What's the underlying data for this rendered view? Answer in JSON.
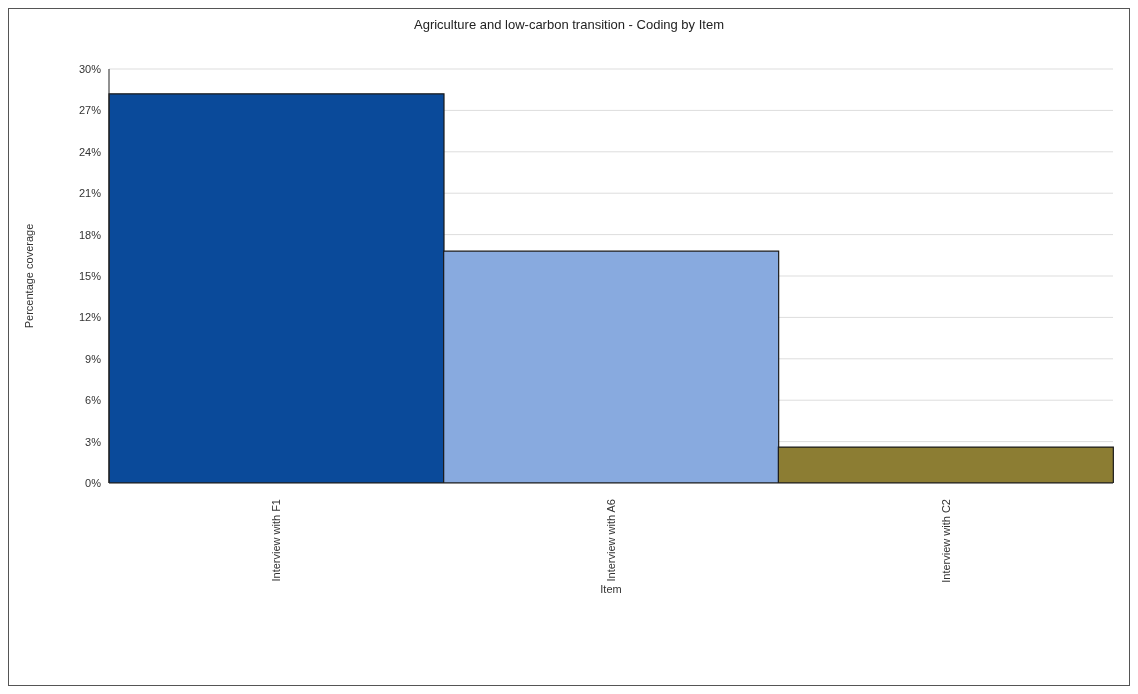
{
  "chart_data": {
    "type": "bar",
    "title": "Agriculture and low-carbon transition - Coding by Item",
    "xlabel": "Item",
    "ylabel": "Percentage coverage",
    "categories": [
      "Interview with F1",
      "Interview with A6",
      "Interview with C2"
    ],
    "values": [
      28.2,
      16.8,
      2.6
    ],
    "colors": [
      "#0a4a9a",
      "#88aadf",
      "#8c7d33"
    ],
    "ylim": [
      0,
      30
    ],
    "yticks": [
      {
        "value": 0,
        "label": "0%"
      },
      {
        "value": 3,
        "label": "3%"
      },
      {
        "value": 6,
        "label": "6%"
      },
      {
        "value": 9,
        "label": "9%"
      },
      {
        "value": 12,
        "label": "12%"
      },
      {
        "value": 15,
        "label": "15%"
      },
      {
        "value": 18,
        "label": "18%"
      },
      {
        "value": 21,
        "label": "21%"
      },
      {
        "value": 24,
        "label": "24%"
      },
      {
        "value": 27,
        "label": "27%"
      },
      {
        "value": 30,
        "label": "30%"
      }
    ],
    "grid": "y"
  }
}
